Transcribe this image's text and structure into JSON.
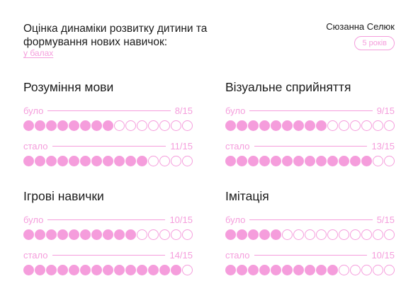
{
  "header": {
    "title": "Оцінка динаміки розвитку дитини та формування нових навичок:",
    "subtitle": "у балах",
    "child_name": "Сюзанна Селюк",
    "age": "5 років"
  },
  "colors": {
    "accent": "#f59ddc",
    "text": "#1b1b1b"
  },
  "chart_data": {
    "type": "dot-matrix",
    "max": 15,
    "categories": [
      {
        "title": "Розуміння мови",
        "before_label": "було",
        "before": 8,
        "before_text": "8/15",
        "after_label": "стало",
        "after": 11,
        "after_text": "11/15"
      },
      {
        "title": "Візуальне сприйняття",
        "before_label": "було",
        "before": 9,
        "before_text": "9/15",
        "after_label": "стало",
        "after": 13,
        "after_text": "13/15"
      },
      {
        "title": "Ігрові навички",
        "before_label": "було",
        "before": 10,
        "before_text": "10/15",
        "after_label": "стало",
        "after": 14,
        "after_text": "14/15"
      },
      {
        "title": "Імітація",
        "before_label": "було",
        "before": 5,
        "before_text": "5/15",
        "after_label": "стало",
        "after": 10,
        "after_text": "10/15"
      }
    ]
  }
}
